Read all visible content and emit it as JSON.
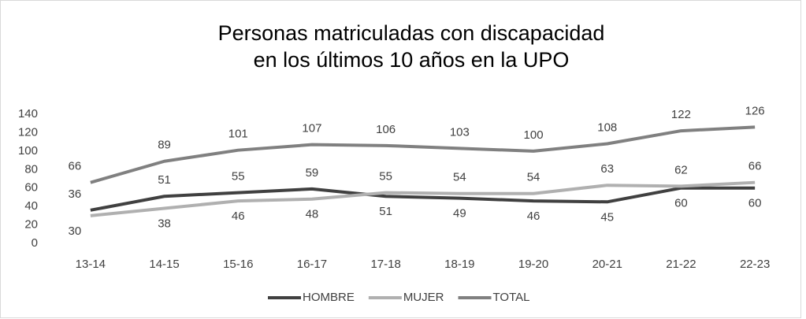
{
  "chart_data": {
    "type": "line",
    "title": [
      "Personas matriculadas con discapacidad",
      "en los últimos 10 años en la UPO"
    ],
    "categories": [
      "13-14",
      "14-15",
      "15-16",
      "16-17",
      "17-18",
      "18-19",
      "19-20",
      "20-21",
      "21-22",
      "22-23"
    ],
    "series": [
      {
        "name": "HOMBRE",
        "color": "#404040",
        "values": [
          36,
          51,
          55,
          59,
          51,
          49,
          46,
          45,
          60,
          60
        ]
      },
      {
        "name": "MUJER",
        "color": "#b0b0b0",
        "values": [
          30,
          38,
          46,
          48,
          55,
          54,
          54,
          63,
          62,
          66
        ]
      },
      {
        "name": "TOTAL",
        "color": "#808080",
        "values": [
          66,
          89,
          101,
          107,
          106,
          103,
          100,
          108,
          122,
          126
        ]
      }
    ],
    "ylim": [
      0,
      140
    ],
    "yticks": [
      0,
      20,
      40,
      60,
      80,
      100,
      120,
      140
    ],
    "legend": "bottom",
    "grid": false
  }
}
